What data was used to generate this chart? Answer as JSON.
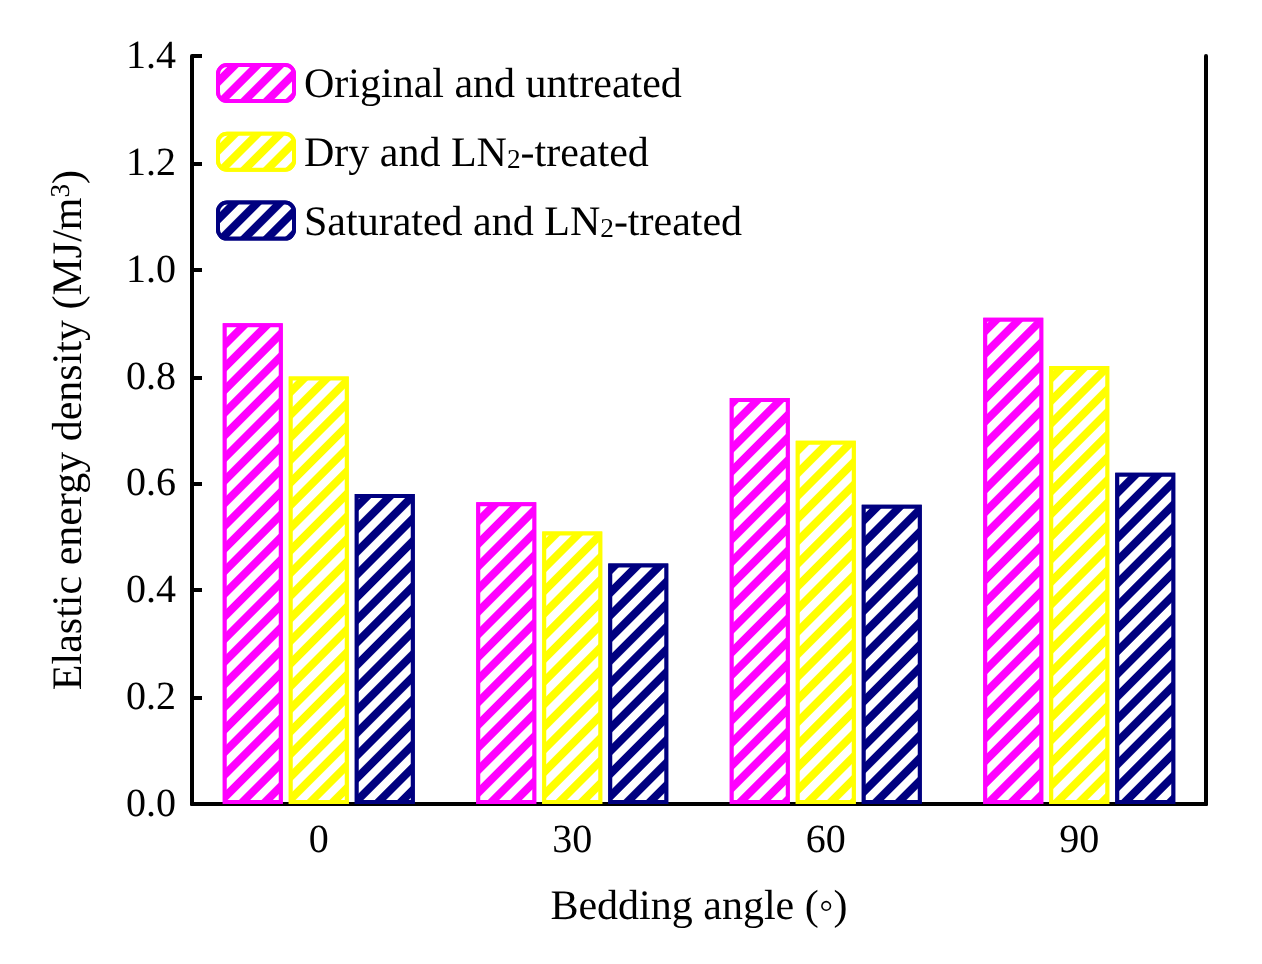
{
  "chart_data": {
    "type": "bar",
    "xlabel": "Bedding angle (◦)",
    "ylabel": "Elastic energy density (MJ/m$^{3}$)",
    "categories": [
      "0",
      "30",
      "60",
      "90"
    ],
    "series": [
      {
        "name": "Original and untreated",
        "color": "#ff00ff",
        "values": [
          0.9,
          0.565,
          0.76,
          0.91
        ]
      },
      {
        "name": "Dry and LN$_{2}$-treated",
        "color": "#ffff00",
        "values": [
          0.8,
          0.51,
          0.68,
          0.82
        ]
      },
      {
        "name": "Saturated and LN$_{2}$-treated",
        "color": "#000080",
        "values": [
          0.58,
          0.45,
          0.56,
          0.62
        ]
      }
    ],
    "ylim": [
      0,
      1.4
    ],
    "yticks": [
      {
        "value": 0,
        "label": "0.0"
      },
      {
        "value": 0.2,
        "label": "0.2"
      },
      {
        "value": 0.4,
        "label": "0.4"
      },
      {
        "value": 0.6,
        "label": "0.6"
      },
      {
        "value": 0.8,
        "label": "0.8"
      },
      {
        "value": 1,
        "label": "1.0"
      },
      {
        "value": 1.2,
        "label": "1.2"
      },
      {
        "value": 1.4,
        "label": "1.4"
      }
    ],
    "legend": "top left",
    "grid": false
  }
}
